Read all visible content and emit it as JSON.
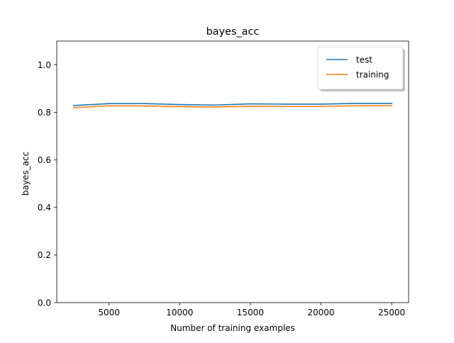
{
  "chart_data": {
    "type": "line",
    "title": "bayes_acc",
    "xlabel": "Number of training examples",
    "ylabel": "bayes_acc",
    "xlim": [
      1300,
      26200
    ],
    "ylim": [
      0.0,
      1.1
    ],
    "x_ticks": [
      5000,
      10000,
      15000,
      20000,
      25000
    ],
    "x_tick_labels": [
      "5000",
      "10000",
      "15000",
      "20000",
      "25000"
    ],
    "y_ticks": [
      0.0,
      0.2,
      0.4,
      0.6,
      0.8,
      1.0
    ],
    "y_tick_labels": [
      "0.0",
      "0.2",
      "0.4",
      "0.6",
      "0.8",
      "1.0"
    ],
    "grid": false,
    "legend_position": "upper right",
    "x": [
      2500,
      5000,
      7500,
      10000,
      12500,
      15000,
      17500,
      20000,
      22500,
      25000
    ],
    "series": [
      {
        "name": "test",
        "color": "#1f77b4",
        "values": [
          0.829,
          0.837,
          0.837,
          0.833,
          0.831,
          0.836,
          0.835,
          0.835,
          0.838,
          0.838
        ]
      },
      {
        "name": "training",
        "color": "#ff7f0e",
        "values": [
          0.82,
          0.828,
          0.827,
          0.824,
          0.823,
          0.826,
          0.825,
          0.825,
          0.828,
          0.828
        ]
      }
    ]
  }
}
